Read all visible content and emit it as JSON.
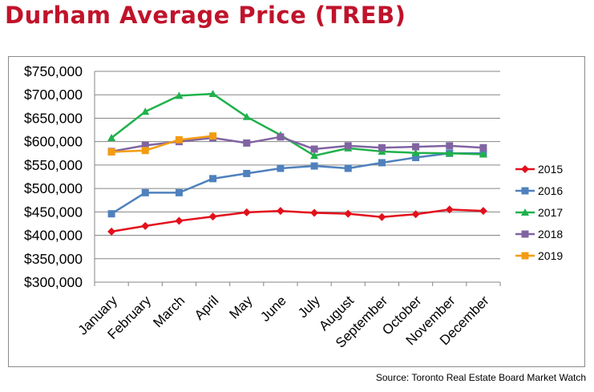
{
  "title": "Durham Average Price (TREB)",
  "source": "Source: Toronto Real Estate Board Market Watch",
  "chart_data": {
    "type": "line",
    "title": "Durham Average Price (TREB)",
    "categories": [
      "January",
      "February",
      "March",
      "April",
      "May",
      "June",
      "July",
      "August",
      "September",
      "October",
      "November",
      "December"
    ],
    "ylim": [
      300000,
      750000
    ],
    "yticks": [
      300000,
      350000,
      400000,
      450000,
      500000,
      550000,
      600000,
      650000,
      700000,
      750000
    ],
    "ytick_labels": [
      "$300,000",
      "$350,000",
      "$400,000",
      "$450,000",
      "$500,000",
      "$550,000",
      "$600,000",
      "$650,000",
      "$700,000",
      "$750,000"
    ],
    "grid": true,
    "legend_position": "right",
    "series": [
      {
        "name": "2015",
        "color": "#e3101c",
        "marker": "diamond",
        "values": [
          408000,
          420000,
          431000,
          440000,
          449000,
          452000,
          448000,
          446000,
          439000,
          445000,
          455000,
          452000
        ]
      },
      {
        "name": "2016",
        "color": "#4f81bd",
        "marker": "square",
        "values": [
          446000,
          491000,
          491000,
          521000,
          532000,
          543000,
          548000,
          543000,
          555000,
          566000,
          575000,
          575000
        ]
      },
      {
        "name": "2017",
        "color": "#1fb14b",
        "marker": "triangle",
        "values": [
          608000,
          664000,
          698000,
          702000,
          653000,
          614000,
          570000,
          586000,
          579000,
          576000,
          575000,
          573000
        ]
      },
      {
        "name": "2018",
        "color": "#8064a2",
        "marker": "square",
        "values": [
          579000,
          592000,
          600000,
          608000,
          597000,
          610000,
          584000,
          591000,
          587000,
          589000,
          591000,
          587000
        ]
      },
      {
        "name": "2019",
        "color": "#f39c12",
        "marker": "square",
        "values": [
          578000,
          581000,
          604000,
          612000,
          null,
          null,
          null,
          null,
          null,
          null,
          null,
          null
        ]
      }
    ]
  }
}
